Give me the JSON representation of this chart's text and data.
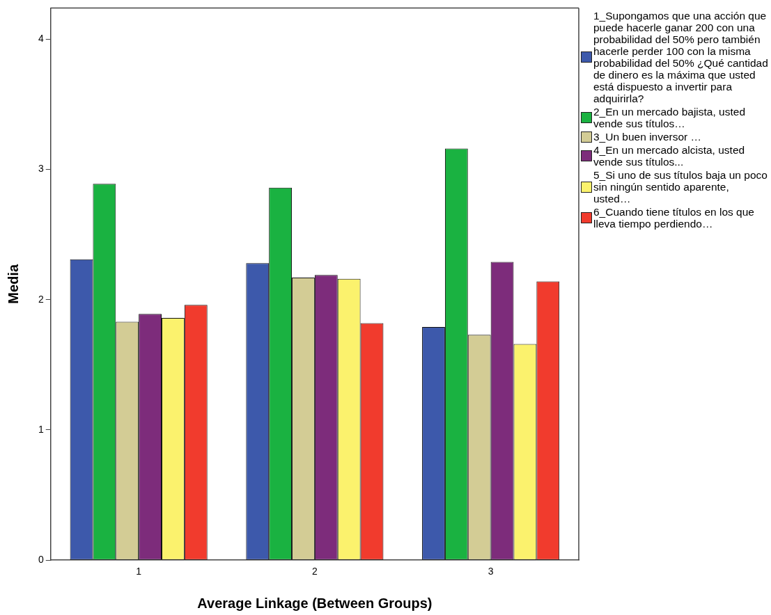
{
  "chart_data": {
    "type": "bar",
    "xlabel": "Average Linkage (Between Groups)",
    "ylabel": "Media",
    "categories": [
      "1",
      "2",
      "3"
    ],
    "ylim": [
      0,
      4.24
    ],
    "yticks": [
      0,
      1,
      2,
      3,
      4
    ],
    "grid": false,
    "legend": "right",
    "series": [
      {
        "name": "1_Supongamos que una acción que puede hacerle ganar 200 con una probabilidad del 50% pero también hacerle perder 100 con la misma probabilidad del 50% ¿Qué cantidad de dinero es la máxima que usted está dispuesto a invertir para adquirirla?",
        "color": "#3d59ab",
        "values": [
          2.31,
          2.28,
          1.79
        ]
      },
      {
        "name": "2_En un mercado bajista, usted vende sus títulos…",
        "color": "#1ab241",
        "values": [
          2.89,
          2.86,
          3.16
        ]
      },
      {
        "name": "3_Un buen inversor …",
        "color": "#d3cc95",
        "values": [
          1.83,
          2.17,
          1.73
        ]
      },
      {
        "name": "4_En un mercado alcista, usted vende sus títulos...",
        "color": "#7d2c7b",
        "values": [
          1.89,
          2.19,
          2.29
        ]
      },
      {
        "name": "5_Si uno de sus títulos baja un poco sin ningún sentido aparente, usted…",
        "color": "#fbf26d",
        "values": [
          1.86,
          2.16,
          1.66
        ]
      },
      {
        "name": "6_Cuando tiene títulos en los que lleva tiempo perdiendo…",
        "color": "#f13b2d",
        "values": [
          1.96,
          1.82,
          2.14
        ]
      }
    ]
  }
}
